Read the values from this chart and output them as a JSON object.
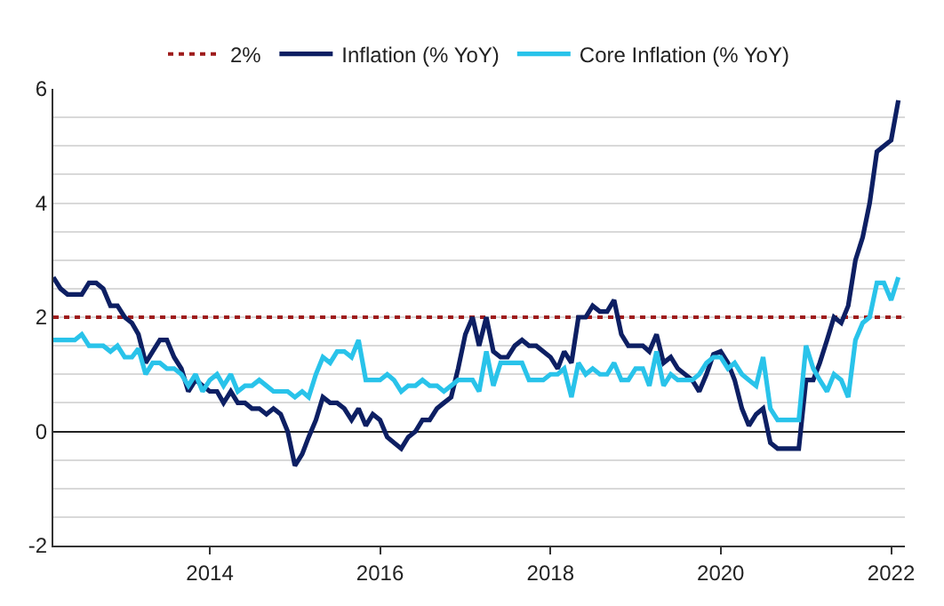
{
  "chart_data": {
    "type": "line",
    "x": [
      "2012-03",
      "2012-04",
      "2012-05",
      "2012-06",
      "2012-07",
      "2012-08",
      "2012-09",
      "2012-10",
      "2012-11",
      "2012-12",
      "2013-01",
      "2013-02",
      "2013-03",
      "2013-04",
      "2013-05",
      "2013-06",
      "2013-07",
      "2013-08",
      "2013-09",
      "2013-10",
      "2013-11",
      "2013-12",
      "2014-01",
      "2014-02",
      "2014-03",
      "2014-04",
      "2014-05",
      "2014-06",
      "2014-07",
      "2014-08",
      "2014-09",
      "2014-10",
      "2014-11",
      "2014-12",
      "2015-01",
      "2015-02",
      "2015-03",
      "2015-04",
      "2015-05",
      "2015-06",
      "2015-07",
      "2015-08",
      "2015-09",
      "2015-10",
      "2015-11",
      "2015-12",
      "2016-01",
      "2016-02",
      "2016-03",
      "2016-04",
      "2016-05",
      "2016-06",
      "2016-07",
      "2016-08",
      "2016-09",
      "2016-10",
      "2016-11",
      "2016-12",
      "2017-01",
      "2017-02",
      "2017-03",
      "2017-04",
      "2017-05",
      "2017-06",
      "2017-07",
      "2017-08",
      "2017-09",
      "2017-10",
      "2017-11",
      "2017-12",
      "2018-01",
      "2018-02",
      "2018-03",
      "2018-04",
      "2018-05",
      "2018-06",
      "2018-07",
      "2018-08",
      "2018-09",
      "2018-10",
      "2018-11",
      "2018-12",
      "2019-01",
      "2019-02",
      "2019-03",
      "2019-04",
      "2019-05",
      "2019-06",
      "2019-07",
      "2019-08",
      "2019-09",
      "2019-10",
      "2019-11",
      "2019-12",
      "2020-01",
      "2020-02",
      "2020-03",
      "2020-04",
      "2020-05",
      "2020-06",
      "2020-07",
      "2020-08",
      "2020-09",
      "2020-10",
      "2020-11",
      "2020-12",
      "2021-01",
      "2021-02",
      "2021-03",
      "2021-04",
      "2021-05",
      "2021-06",
      "2021-07",
      "2021-08",
      "2021-09",
      "2021-10",
      "2021-11",
      "2021-12",
      "2022-01",
      "2022-02"
    ],
    "series": [
      {
        "name": "Inflation (% YoY)",
        "color": "#0d1f63",
        "values": [
          2.7,
          2.5,
          2.4,
          2.4,
          2.4,
          2.6,
          2.6,
          2.5,
          2.2,
          2.2,
          2.0,
          1.9,
          1.7,
          1.2,
          1.4,
          1.6,
          1.6,
          1.3,
          1.1,
          0.7,
          0.9,
          0.8,
          0.7,
          0.7,
          0.5,
          0.7,
          0.5,
          0.5,
          0.4,
          0.4,
          0.3,
          0.4,
          0.3,
          0.0,
          -0.6,
          -0.4,
          -0.1,
          0.2,
          0.6,
          0.5,
          0.5,
          0.4,
          0.2,
          0.4,
          0.1,
          0.3,
          0.2,
          -0.1,
          -0.2,
          -0.3,
          -0.1,
          0.0,
          0.2,
          0.2,
          0.4,
          0.5,
          0.6,
          1.1,
          1.7,
          2.0,
          1.5,
          2.0,
          1.4,
          1.3,
          1.3,
          1.5,
          1.6,
          1.5,
          1.5,
          1.4,
          1.3,
          1.1,
          1.4,
          1.2,
          2.0,
          2.0,
          2.2,
          2.1,
          2.1,
          2.3,
          1.7,
          1.5,
          1.5,
          1.5,
          1.4,
          1.7,
          1.2,
          1.3,
          1.1,
          1.0,
          0.9,
          0.7,
          1.0,
          1.35,
          1.4,
          1.2,
          0.9,
          0.4,
          0.1,
          0.3,
          0.4,
          -0.2,
          -0.3,
          -0.3,
          -0.3,
          -0.3,
          0.9,
          0.9,
          1.2,
          1.6,
          2.0,
          1.9,
          2.2,
          3.0,
          3.4,
          4.0,
          4.9,
          5.0,
          5.1,
          5.8
        ]
      },
      {
        "name": "Core Inflation (% YoY)",
        "color": "#29c3ea",
        "values": [
          1.6,
          1.6,
          1.6,
          1.6,
          1.7,
          1.5,
          1.5,
          1.5,
          1.4,
          1.5,
          1.3,
          1.3,
          1.45,
          1.0,
          1.2,
          1.2,
          1.1,
          1.1,
          1.0,
          0.8,
          1.0,
          0.7,
          0.9,
          1.0,
          0.8,
          1.0,
          0.7,
          0.8,
          0.8,
          0.9,
          0.8,
          0.7,
          0.7,
          0.7,
          0.6,
          0.7,
          0.6,
          1.0,
          1.3,
          1.2,
          1.4,
          1.4,
          1.3,
          1.6,
          0.9,
          0.9,
          0.9,
          1.0,
          0.9,
          0.7,
          0.8,
          0.8,
          0.9,
          0.8,
          0.8,
          0.7,
          0.8,
          0.9,
          0.9,
          0.9,
          0.7,
          1.4,
          0.8,
          1.2,
          1.2,
          1.2,
          1.2,
          0.9,
          0.9,
          0.9,
          1.0,
          1.0,
          1.1,
          0.6,
          1.2,
          1.0,
          1.1,
          1.0,
          1.0,
          1.2,
          0.9,
          0.9,
          1.1,
          1.1,
          0.8,
          1.4,
          0.8,
          1.0,
          0.9,
          0.9,
          0.9,
          1.0,
          1.2,
          1.3,
          1.3,
          1.1,
          1.2,
          1.0,
          0.9,
          0.8,
          1.3,
          0.4,
          0.2,
          0.2,
          0.2,
          0.2,
          1.5,
          1.1,
          0.9,
          0.7,
          1.0,
          0.9,
          0.6,
          1.6,
          1.9,
          2.0,
          2.6,
          2.6,
          2.3,
          2.7
        ]
      }
    ],
    "ref_lines": [
      {
        "axis": "y",
        "value": 2,
        "label": "2%",
        "color": "#9e1b1b",
        "line_style": "dotted"
      }
    ],
    "xlim": [
      "2012-03",
      "2022-03"
    ],
    "xticks": [
      "2014",
      "2016",
      "2018",
      "2020",
      "2022"
    ],
    "ylim": [
      -2,
      6
    ],
    "yticks": [
      -2,
      {
        "value": -1.5,
        "label": null
      },
      {
        "value": -1,
        "label": null
      },
      {
        "value": -0.5,
        "label": null
      },
      0,
      {
        "value": 0.5,
        "label": null
      },
      {
        "value": 1,
        "label": null
      },
      {
        "value": 1.5,
        "label": null
      },
      2,
      {
        "value": 2.5,
        "label": null
      },
      {
        "value": 3,
        "label": null
      },
      {
        "value": 3.5,
        "label": null
      },
      4,
      {
        "value": 4.5,
        "label": null
      },
      {
        "value": 5,
        "label": null
      },
      {
        "value": 5.5,
        "label": null
      },
      6
    ],
    "grid": "y",
    "legend": "top",
    "marker": "none",
    "line_style": "solid"
  }
}
